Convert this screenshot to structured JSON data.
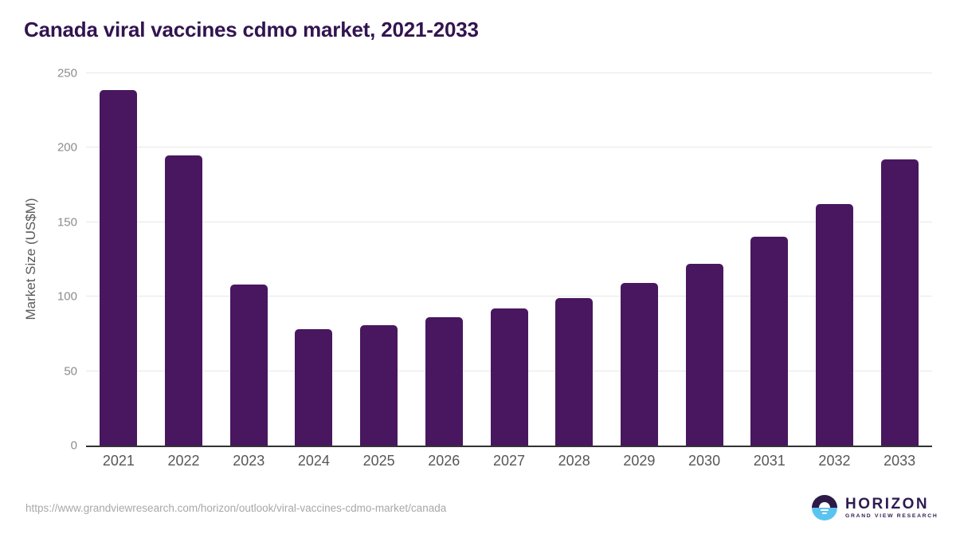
{
  "page": {
    "title": "Canada viral vaccines cdmo market, 2021-2033",
    "source_url": "https://www.grandviewresearch.com/horizon/outlook/viral-vaccines-cdmo-market/canada"
  },
  "chart_data": {
    "type": "bar",
    "title": "Canada viral vaccines cdmo market, 2021-2033",
    "categories": [
      "2021",
      "2022",
      "2023",
      "2024",
      "2025",
      "2026",
      "2027",
      "2028",
      "2029",
      "2030",
      "2031",
      "2032",
      "2033"
    ],
    "values": [
      239,
      195,
      108,
      78,
      81,
      86,
      92,
      99,
      109,
      122,
      140,
      162,
      192
    ],
    "xlabel": "",
    "ylabel": "Market Size (US$M)",
    "ylim": [
      0,
      250
    ],
    "yticks": [
      0,
      50,
      100,
      150,
      200,
      250
    ],
    "grid": true,
    "legend": false,
    "bar_color": "#48175f"
  },
  "footer": {
    "source_url": "https://www.grandviewresearch.com/horizon/outlook/viral-vaccines-cdmo-market/canada"
  },
  "logo": {
    "brand": "HORIZON",
    "subbrand": "GRAND VIEW RESEARCH",
    "icon": "horizon-sun-icon",
    "icon_dark_color": "#2d1a47",
    "icon_blue_color": "#5bc3f0"
  },
  "colors": {
    "title": "#321450",
    "bar": "#48175f",
    "gridline": "#e7e7e7",
    "axis_line": "#333333",
    "y_tick_label": "#8c8c8c",
    "x_tick_label": "#575757",
    "axis_title": "#5a5a5a",
    "source_url": "#a8a8a8",
    "background": "#ffffff"
  }
}
